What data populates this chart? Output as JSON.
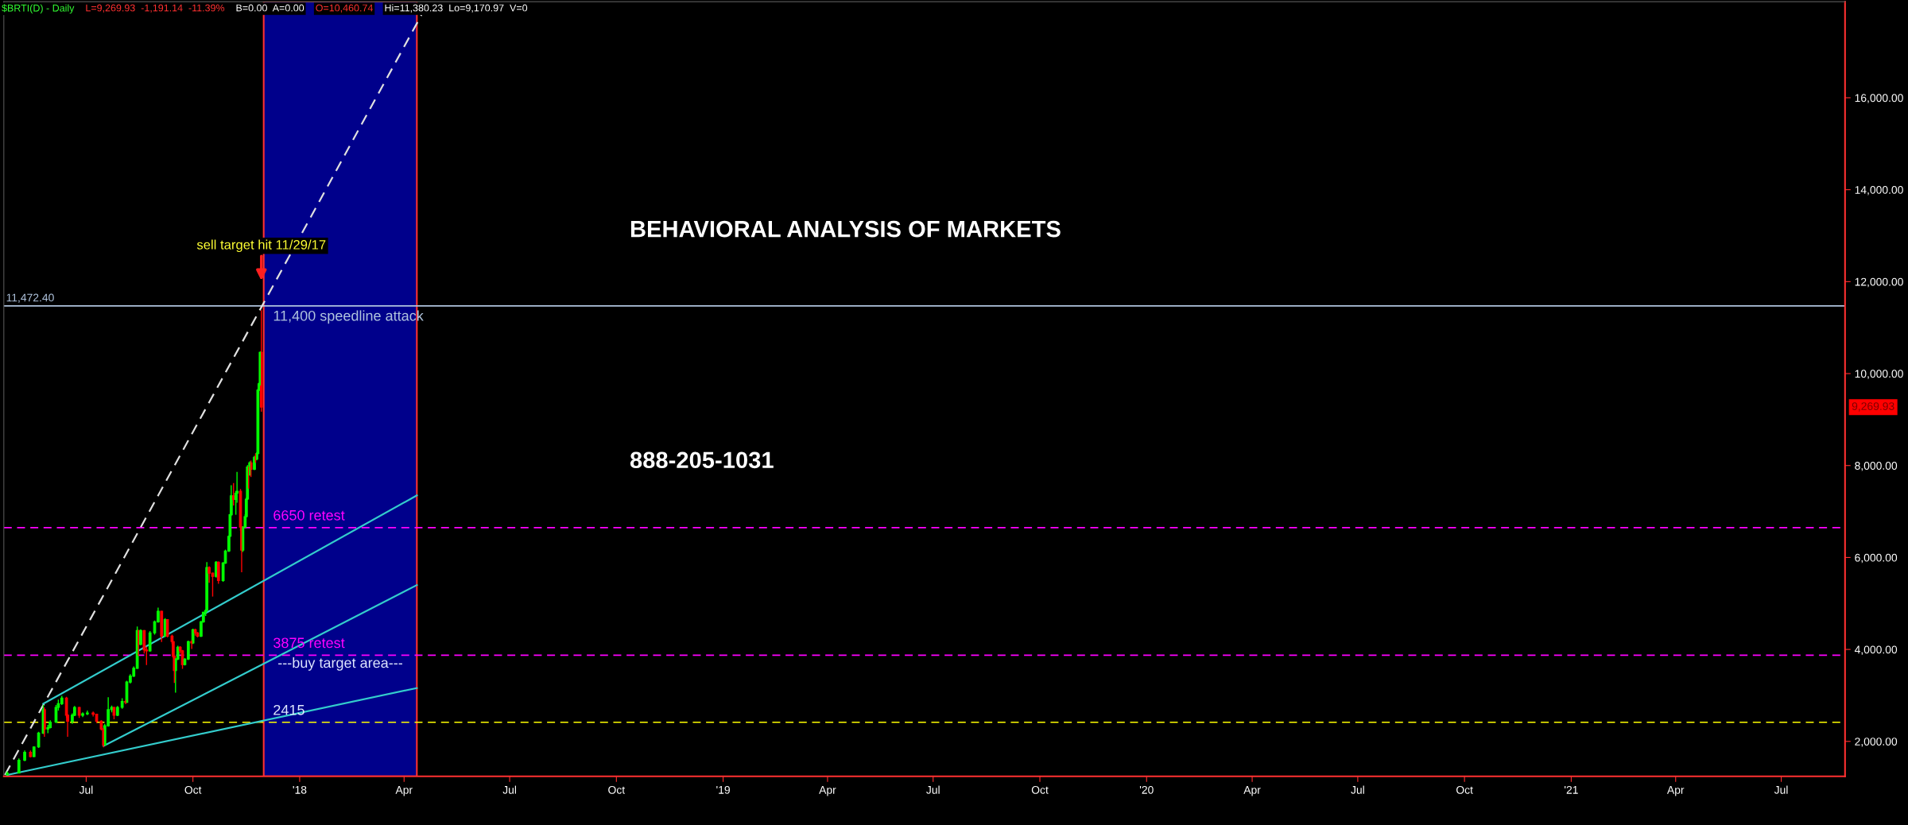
{
  "chart_data": {
    "type": "candlestick",
    "x": [
      "2017-04-24",
      "2017-05-04",
      "2017-05-09",
      "2017-05-14",
      "2017-05-17",
      "2017-05-21",
      "2017-05-25",
      "2017-05-26",
      "2017-05-29",
      "2017-05-31",
      "2017-06-05",
      "2017-06-07",
      "2017-06-10",
      "2017-06-14",
      "2017-06-15",
      "2017-06-19",
      "2017-06-21",
      "2017-06-25",
      "2017-06-28",
      "2017-07-02",
      "2017-07-07",
      "2017-07-10",
      "2017-07-14",
      "2017-07-16",
      "2017-07-17",
      "2017-07-20",
      "2017-07-23",
      "2017-07-25",
      "2017-07-28",
      "2017-08-01",
      "2017-08-04",
      "2017-08-05",
      "2017-08-08",
      "2017-08-11",
      "2017-08-14",
      "2017-08-15",
      "2017-08-17",
      "2017-08-20",
      "2017-08-22",
      "2017-08-25",
      "2017-08-29",
      "2017-09-01",
      "2017-09-04",
      "2017-09-07",
      "2017-09-09",
      "2017-09-13",
      "2017-09-14",
      "2017-09-15",
      "2017-09-16",
      "2017-09-18",
      "2017-09-20",
      "2017-09-22",
      "2017-09-24",
      "2017-09-27",
      "2017-09-30",
      "2017-10-01",
      "2017-10-03",
      "2017-10-05",
      "2017-10-08",
      "2017-10-10",
      "2017-10-12",
      "2017-10-13",
      "2017-10-15",
      "2017-10-18",
      "2017-10-21",
      "2017-10-23",
      "2017-10-27",
      "2017-10-29",
      "2017-11-01",
      "2017-11-02",
      "2017-11-03",
      "2017-11-05",
      "2017-11-07",
      "2017-11-08",
      "2017-11-11",
      "2017-11-12",
      "2017-11-13",
      "2017-11-15",
      "2017-11-16",
      "2017-11-17",
      "2017-11-18",
      "2017-11-19",
      "2017-11-20",
      "2017-11-23",
      "2017-11-24",
      "2017-11-25",
      "2017-11-26",
      "2017-11-27",
      "2017-11-28",
      "2017-11-29"
    ],
    "ohlc": [
      [
        1270,
        1350,
        1270,
        1310
      ],
      [
        1310,
        1630,
        1310,
        1590
      ],
      [
        1590,
        1800,
        1570,
        1760
      ],
      [
        1760,
        1800,
        1650,
        1670
      ],
      [
        1670,
        1890,
        1660,
        1880
      ],
      [
        1880,
        2210,
        1860,
        2180
      ],
      [
        2180,
        2790,
        2160,
        2690
      ],
      [
        2690,
        2740,
        2100,
        2270
      ],
      [
        2270,
        2360,
        2180,
        2300
      ],
      [
        2300,
        2460,
        2280,
        2420
      ],
      [
        2420,
        2790,
        2400,
        2740
      ],
      [
        2740,
        2910,
        2670,
        2820
      ],
      [
        2820,
        2990,
        2790,
        2940
      ],
      [
        2940,
        2970,
        2510,
        2570
      ],
      [
        2570,
        2590,
        2100,
        2440
      ],
      [
        2440,
        2610,
        2380,
        2570
      ],
      [
        2570,
        2770,
        2550,
        2740
      ],
      [
        2740,
        2750,
        2510,
        2570
      ],
      [
        2570,
        2630,
        2530,
        2600
      ],
      [
        2600,
        2670,
        2570,
        2620
      ],
      [
        2620,
        2650,
        2540,
        2590
      ],
      [
        2590,
        2600,
        2400,
        2440
      ],
      [
        2440,
        2460,
        2240,
        2270
      ],
      [
        2270,
        2280,
        1870,
        1920
      ],
      [
        1920,
        2380,
        1910,
        2340
      ],
      [
        2340,
        2960,
        2320,
        2690
      ],
      [
        2690,
        2780,
        2630,
        2740
      ],
      [
        2740,
        2750,
        2480,
        2570
      ],
      [
        2570,
        2770,
        2550,
        2740
      ],
      [
        2740,
        2940,
        2710,
        2870
      ],
      [
        2870,
        2910,
        2810,
        2850
      ],
      [
        2850,
        3320,
        2840,
        3290
      ],
      [
        3290,
        3460,
        3260,
        3420
      ],
      [
        3420,
        3630,
        3400,
        3590
      ],
      [
        3590,
        4500,
        3580,
        4410
      ],
      [
        4410,
        4420,
        3860,
        4110
      ],
      [
        4110,
        4440,
        4090,
        4410
      ],
      [
        4410,
        4420,
        3910,
        3990
      ],
      [
        3990,
        4060,
        3660,
        3970
      ],
      [
        3970,
        4400,
        3950,
        4360
      ],
      [
        4360,
        4630,
        4320,
        4600
      ],
      [
        4600,
        4910,
        4580,
        4830
      ],
      [
        4830,
        4840,
        4160,
        4290
      ],
      [
        4290,
        4680,
        4270,
        4650
      ],
      [
        4650,
        4660,
        4260,
        4290
      ],
      [
        4290,
        4320,
        4120,
        4170
      ],
      [
        4170,
        4180,
        3810,
        3850
      ],
      [
        3850,
        3870,
        3270,
        3540
      ],
      [
        3540,
        3810,
        3060,
        3790
      ],
      [
        3790,
        4080,
        3770,
        4050
      ],
      [
        4050,
        4070,
        3910,
        3970
      ],
      [
        3970,
        3990,
        3580,
        3670
      ],
      [
        3670,
        3810,
        3650,
        3790
      ],
      [
        3790,
        4190,
        3770,
        4170
      ],
      [
        4170,
        4200,
        4010,
        4140
      ],
      [
        4140,
        4450,
        4120,
        4430
      ],
      [
        4430,
        4450,
        4300,
        4360
      ],
      [
        4360,
        4380,
        4260,
        4290
      ],
      [
        4290,
        4620,
        4270,
        4600
      ],
      [
        4600,
        4820,
        4580,
        4810
      ],
      [
        4810,
        4870,
        4730,
        4850
      ],
      [
        4850,
        5900,
        4840,
        5780
      ],
      [
        5780,
        5810,
        5450,
        5660
      ],
      [
        5660,
        5670,
        5150,
        5590
      ],
      [
        5590,
        5920,
        5560,
        5900
      ],
      [
        5900,
        5910,
        5430,
        5500
      ],
      [
        5500,
        5900,
        5470,
        5880
      ],
      [
        5880,
        6170,
        5860,
        6140
      ],
      [
        6140,
        6480,
        6120,
        6460
      ],
      [
        6460,
        6950,
        6440,
        6930
      ],
      [
        6930,
        7570,
        6900,
        7340
      ],
      [
        7340,
        7620,
        7130,
        7260
      ],
      [
        7260,
        7440,
        6930,
        7400
      ],
      [
        7400,
        7860,
        7190,
        7440
      ],
      [
        7440,
        7490,
        6580,
        6660
      ],
      [
        6660,
        6680,
        5680,
        6160
      ],
      [
        6160,
        6680,
        6120,
        6660
      ],
      [
        6660,
        6940,
        6640,
        6890
      ],
      [
        6890,
        7300,
        6870,
        7270
      ],
      [
        7270,
        8010,
        7250,
        7970
      ],
      [
        7970,
        7980,
        7500,
        7800
      ],
      [
        7800,
        8090,
        7780,
        8060
      ],
      [
        8060,
        8110,
        7750,
        7920
      ],
      [
        7920,
        8210,
        7900,
        8180
      ],
      [
        8180,
        8260,
        8060,
        8140
      ],
      [
        8140,
        8290,
        8110,
        8260
      ],
      [
        8260,
        9670,
        8240,
        9640
      ],
      [
        9640,
        9800,
        9620,
        9780
      ],
      [
        9780,
        10480,
        9740,
        10460.74
      ],
      [
        10460.74,
        11380.23,
        9170.97,
        9269.93
      ]
    ],
    "colors": [
      "#00ff00",
      "#00ff00",
      "#00ff00",
      "#ff0000",
      "#00ff00",
      "#00ff00",
      "#00ff00",
      "#ff0000",
      "#00ff00",
      "#00ff00",
      "#00ff00",
      "#00ff00",
      "#00ff00",
      "#ff0000",
      "#ff0000",
      "#00ff00",
      "#00ff00",
      "#ff0000",
      "#00ff00",
      "#00ff00",
      "#ff0000",
      "#ff0000",
      "#ff0000",
      "#ff0000",
      "#00ff00",
      "#00ff00",
      "#00ff00",
      "#ff0000",
      "#00ff00",
      "#00ff00",
      "#ff0000",
      "#00ff00",
      "#00ff00",
      "#00ff00",
      "#00ff00",
      "#ff0000",
      "#00ff00",
      "#ff0000",
      "#ff0000",
      "#00ff00",
      "#00ff00",
      "#00ff00",
      "#ff0000",
      "#00ff00",
      "#ff0000",
      "#ff0000",
      "#ff0000",
      "#ff0000",
      "#00ff00",
      "#00ff00",
      "#ff0000",
      "#ff0000",
      "#00ff00",
      "#00ff00",
      "#ff0000",
      "#00ff00",
      "#ff0000",
      "#ff0000",
      "#00ff00",
      "#00ff00",
      "#00ff00",
      "#00ff00",
      "#ff0000",
      "#ff0000",
      "#00ff00",
      "#ff0000",
      "#00ff00",
      "#00ff00",
      "#00ff00",
      "#00ff00",
      "#00ff00",
      "#ff0000",
      "#00ff00",
      "#00ff00",
      "#ff0000",
      "#ff0000",
      "#00ff00",
      "#00ff00",
      "#00ff00",
      "#00ff00",
      "#ff0000",
      "#00ff00",
      "#ff0000",
      "#00ff00",
      "#ff0000",
      "#00ff00",
      "#00ff00",
      "#00ff00",
      "#00ff00",
      "#ff0000"
    ],
    "series": [
      {
        "type": "line",
        "x": [
          "2017-04-22",
          "2018-04-16"
        ],
        "values": [
          1270,
          17800
        ],
        "color": "#e0e0e0",
        "line_style": "dashed"
      },
      {
        "type": "line",
        "x": [
          "2017-05-25",
          "2018-04-12"
        ],
        "values": [
          2820,
          7350
        ],
        "color": "#33cccc",
        "line_style": "solid"
      },
      {
        "type": "line",
        "x": [
          "2017-07-16",
          "2018-04-12"
        ],
        "values": [
          1900,
          5400
        ],
        "color": "#33cccc",
        "line_style": "solid"
      },
      {
        "type": "line",
        "x": [
          "2017-04-24",
          "2018-04-12"
        ],
        "values": [
          1270,
          3160
        ],
        "color": "#33cccc",
        "line_style": "solid"
      }
    ],
    "ref_lines": [
      {
        "axis": "y",
        "value": 11472.4,
        "label": "11,400 speedline attack",
        "color": "#b0c4de",
        "line_style": "solid"
      },
      {
        "axis": "y",
        "value": 6650,
        "label": "6650 retest",
        "color": "#ff00ff",
        "line_style": "dashed"
      },
      {
        "axis": "y",
        "value": 3875,
        "label": "3875 retest",
        "color": "#ff00ff",
        "line_style": "dashed"
      },
      {
        "axis": "y",
        "value": 2415,
        "label": "2415",
        "color": "#ffff00",
        "line_style": "dashed"
      }
    ],
    "bands": [
      {
        "axis": "x",
        "from": "2017-12-01",
        "to": "2018-04-12",
        "label": "---buy target area---",
        "color": "#00008b"
      }
    ],
    "annotations": [
      "$BRTI(D) - Daily",
      "L=9,269.93  -1,191.14  -11.39%",
      "B=0.00  A=0.00",
      "O=10,460.74",
      "Hi=11,380.23  Lo=9,170.97  V=0",
      "BEHAVIORAL ANALYSIS OF MARKETS",
      "888-205-1031",
      {
        "text": "sell target hit 11/29/17",
        "x": "2017-11-29",
        "y": 12020
      },
      "11,472.40",
      "9,269.93"
    ],
    "xlim": [
      "2017-04-21",
      "2021-08-25"
    ],
    "xticks": [
      {
        "value": "2017-07-01",
        "label": "Jul"
      },
      {
        "value": "2017-10-01",
        "label": "Oct"
      },
      {
        "value": "2018-01-01",
        "label": "'18"
      },
      {
        "value": "2018-04-01",
        "label": "Apr"
      },
      {
        "value": "2018-07-01",
        "label": "Jul"
      },
      {
        "value": "2018-10-01",
        "label": "Oct"
      },
      {
        "value": "2019-01-01",
        "label": "'19"
      },
      {
        "value": "2019-04-01",
        "label": "Apr"
      },
      {
        "value": "2019-07-01",
        "label": "Jul"
      },
      {
        "value": "2019-10-01",
        "label": "Oct"
      },
      {
        "value": "2020-01-01",
        "label": "'20"
      },
      {
        "value": "2020-04-01",
        "label": "Apr"
      },
      {
        "value": "2020-07-01",
        "label": "Jul"
      },
      {
        "value": "2020-10-01",
        "label": "Oct"
      },
      {
        "value": "2021-01-01",
        "label": "'21"
      },
      {
        "value": "2021-04-01",
        "label": "Apr"
      },
      {
        "value": "2021-07-01",
        "label": "Jul"
      }
    ],
    "ylim": [
      1240,
      18090
    ],
    "yticks": [
      {
        "value": 2000,
        "label": "2,000.00"
      },
      {
        "value": 4000,
        "label": "4,000.00"
      },
      {
        "value": 6000,
        "label": "6,000.00"
      },
      {
        "value": 8000,
        "label": "8,000.00"
      },
      {
        "value": 10000,
        "label": "10,000.00"
      },
      {
        "value": 12000,
        "label": "12,000.00"
      },
      {
        "value": 14000,
        "label": "14,000.00"
      },
      {
        "value": 16000,
        "label": "16,000.00"
      }
    ],
    "grid": false,
    "legend": false
  }
}
